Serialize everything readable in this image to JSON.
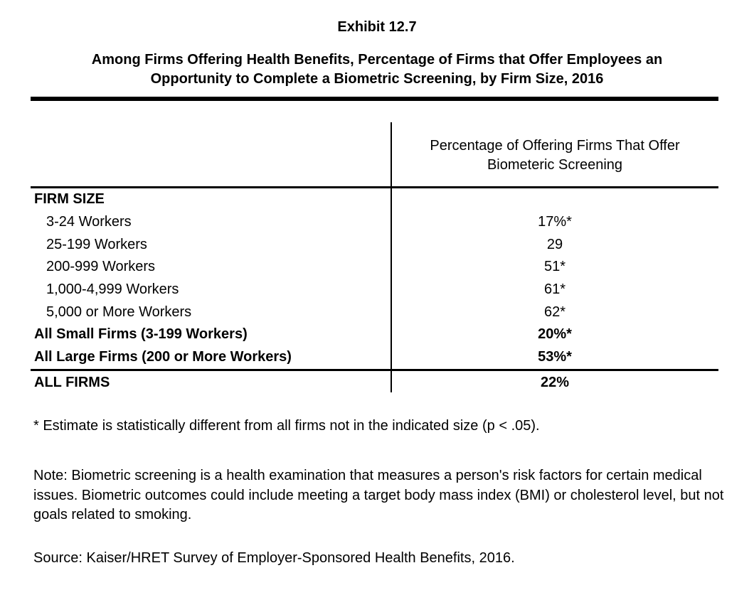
{
  "header": {
    "exhibit_label": "Exhibit 12.7",
    "title_line1": "Among Firms Offering Health Benefits, Percentage of Firms that Offer Employees an",
    "title_line2": "Opportunity to Complete a Biometric Screening, by Firm Size, 2016"
  },
  "table": {
    "value_column_header_line1": "Percentage of Offering Firms That Offer",
    "value_column_header_line2": "Biometeric Screening",
    "rows": [
      {
        "label": "FIRM SIZE",
        "value": ""
      },
      {
        "label": "3-24 Workers",
        "value": "17%*"
      },
      {
        "label": "25-199 Workers",
        "value": "29"
      },
      {
        "label": "200-999 Workers",
        "value": "51*"
      },
      {
        "label": "1,000-4,999 Workers",
        "value": "61*"
      },
      {
        "label": "5,000 or More Workers",
        "value": "62*"
      },
      {
        "label": "All Small Firms (3-199 Workers)",
        "value": "20%*"
      },
      {
        "label": "All Large Firms (200 or More Workers)",
        "value": "53%*"
      },
      {
        "label": "ALL FIRMS",
        "value": "22%"
      }
    ]
  },
  "footnotes": {
    "significance": "* Estimate is statistically different from all firms not in the indicated size (p < .05).",
    "note": "Note: Biometric screening is a health examination that measures a person's risk factors for certain medical issues. Biometric outcomes could include meeting a target body mass index (BMI) or cholesterol level, but not goals related to smoking.",
    "source": "Source: Kaiser/HRET Survey of Employer-Sponsored Health Benefits, 2016."
  },
  "colors": {
    "text": "#000000",
    "background": "#ffffff",
    "rule": "#000000"
  }
}
